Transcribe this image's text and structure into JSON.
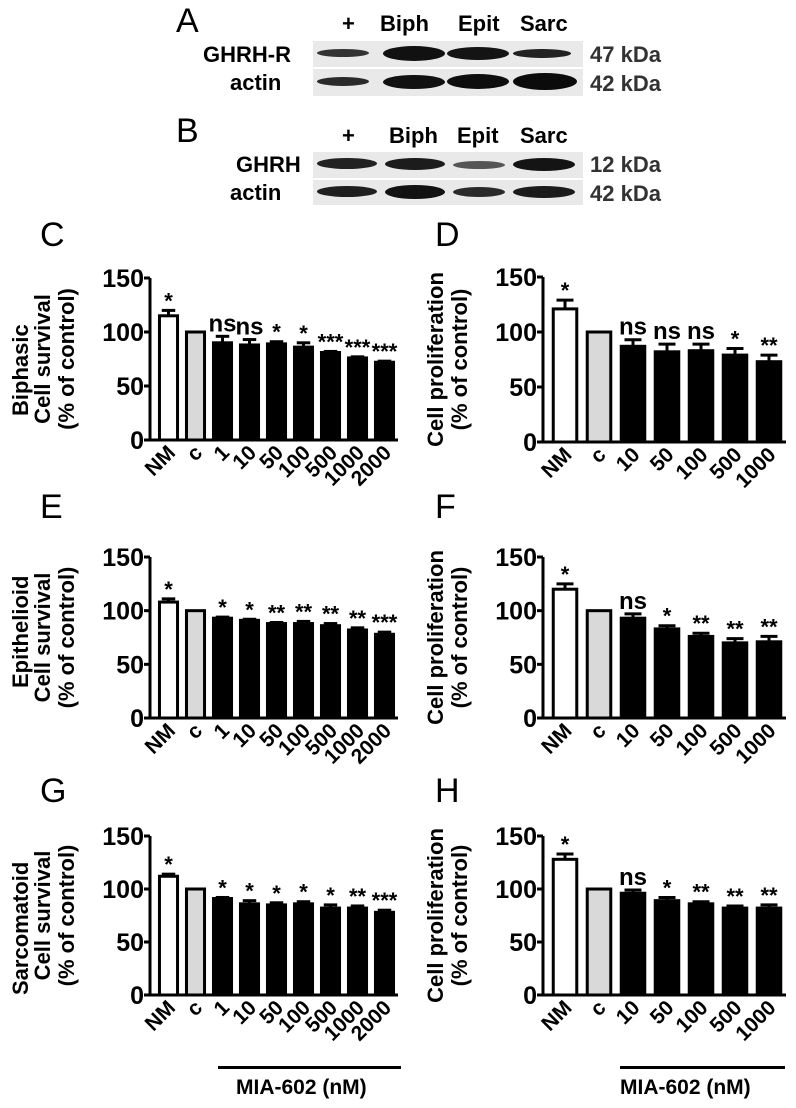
{
  "figure": {
    "panel_A": {
      "letter": "A",
      "lanes": [
        "+",
        "Biph",
        "Epit",
        "Sarc"
      ],
      "rows": [
        {
          "label": "GHRH-R",
          "kda": "47 kDa",
          "intensities": [
            0.55,
            0.95,
            0.9,
            0.7
          ]
        },
        {
          "label": "actin",
          "kda": "42 kDa",
          "intensities": [
            0.6,
            0.9,
            0.92,
            0.95
          ]
        }
      ]
    },
    "panel_B": {
      "letter": "B",
      "lanes": [
        "+",
        "Biph",
        "Epit",
        "Sarc"
      ],
      "rows": [
        {
          "label": "GHRH",
          "kda": "12 kDa",
          "intensities": [
            0.7,
            0.75,
            0.45,
            0.85
          ]
        },
        {
          "label": "actin",
          "kda": "42 kDa",
          "intensities": [
            0.75,
            0.85,
            0.65,
            0.75
          ]
        }
      ]
    },
    "row_labels": [
      "Biphasic",
      "Epithelioid",
      "Sarcomatoid"
    ],
    "x_group_label": "MIA-602 (nM)"
  },
  "chart_data": [
    {
      "panel": "C",
      "type": "bar",
      "row": "Biphasic",
      "ylabel": "Cell survival\n(% of control)",
      "ylabel_line1": "Cell survival",
      "ylabel_line2": "(% of control)",
      "ylim": [
        0,
        150
      ],
      "yticks": [
        0,
        50,
        100,
        150
      ],
      "categories": [
        "NM",
        "c",
        "1",
        "10",
        "50",
        "100",
        "500",
        "1000",
        "2000"
      ],
      "values": [
        115,
        100,
        90,
        88,
        89,
        86,
        81,
        76,
        72
      ],
      "errors": [
        5,
        0,
        6,
        5,
        2,
        4,
        1,
        1,
        1
      ],
      "significance": [
        "*",
        "",
        "ns",
        "ns",
        "*",
        "*",
        "***",
        "***",
        "***"
      ],
      "fills": [
        "white",
        "gray",
        "black",
        "black",
        "black",
        "black",
        "black",
        "black",
        "black"
      ]
    },
    {
      "panel": "D",
      "type": "bar",
      "row": "Biphasic",
      "ylabel_line1": "Cell proliferation",
      "ylabel_line2": "(% of control)",
      "ylim": [
        0,
        150
      ],
      "yticks": [
        0,
        50,
        100,
        150
      ],
      "categories": [
        "NM",
        "c",
        "10",
        "50",
        "100",
        "500",
        "1000"
      ],
      "values": [
        121,
        100,
        87,
        82,
        83,
        79,
        73
      ],
      "errors": [
        8,
        0,
        6,
        7,
        6,
        6,
        6
      ],
      "significance": [
        "*",
        "",
        "ns",
        "ns",
        "ns",
        "*",
        "**"
      ],
      "fills": [
        "white",
        "gray",
        "black",
        "black",
        "black",
        "black",
        "black"
      ]
    },
    {
      "panel": "E",
      "type": "bar",
      "row": "Epithelioid",
      "ylabel_line1": "Cell survival",
      "ylabel_line2": "(% of control)",
      "ylim": [
        0,
        150
      ],
      "yticks": [
        0,
        50,
        100,
        150
      ],
      "categories": [
        "NM",
        "c",
        "1",
        "10",
        "50",
        "100",
        "500",
        "1000",
        "2000"
      ],
      "values": [
        108,
        100,
        93,
        91,
        88,
        88,
        86,
        82,
        78
      ],
      "errors": [
        3,
        0,
        1,
        1,
        1,
        2,
        2,
        2,
        2
      ],
      "significance": [
        "*",
        "",
        "*",
        "*",
        "**",
        "**",
        "**",
        "**",
        "***"
      ],
      "fills": [
        "white",
        "gray",
        "black",
        "black",
        "black",
        "black",
        "black",
        "black",
        "black"
      ]
    },
    {
      "panel": "F",
      "type": "bar",
      "row": "Epithelioid",
      "ylabel_line1": "Cell proliferation",
      "ylabel_line2": "(% of control)",
      "ylim": [
        0,
        150
      ],
      "yticks": [
        0,
        50,
        100,
        150
      ],
      "categories": [
        "NM",
        "c",
        "10",
        "50",
        "100",
        "500",
        "1000"
      ],
      "values": [
        120,
        100,
        93,
        83,
        76,
        70,
        71
      ],
      "errors": [
        5,
        0,
        4,
        3,
        3,
        4,
        5
      ],
      "significance": [
        "*",
        "",
        "ns",
        "*",
        "**",
        "**",
        "**"
      ],
      "fills": [
        "white",
        "gray",
        "black",
        "black",
        "black",
        "black",
        "black"
      ]
    },
    {
      "panel": "G",
      "type": "bar",
      "row": "Sarcomatoid",
      "ylabel_line1": "Cell survival",
      "ylabel_line2": "(% of control)",
      "ylim": [
        0,
        150
      ],
      "yticks": [
        0,
        50,
        100,
        150
      ],
      "categories": [
        "NM",
        "c",
        "1",
        "10",
        "50",
        "100",
        "500",
        "1000",
        "2000"
      ],
      "values": [
        112,
        100,
        91,
        86,
        85,
        86,
        82,
        82,
        78
      ],
      "errors": [
        2,
        0,
        1,
        3,
        2,
        2,
        3,
        2,
        2
      ],
      "significance": [
        "*",
        "",
        "*",
        "*",
        "*",
        "*",
        "*",
        "**",
        "***"
      ],
      "fills": [
        "white",
        "gray",
        "black",
        "black",
        "black",
        "black",
        "black",
        "black",
        "black"
      ]
    },
    {
      "panel": "H",
      "type": "bar",
      "row": "Sarcomatoid",
      "ylabel_line1": "Cell proliferation",
      "ylabel_line2": "(% of control)",
      "ylim": [
        0,
        150
      ],
      "yticks": [
        0,
        50,
        100,
        150
      ],
      "categories": [
        "NM",
        "c",
        "10",
        "50",
        "100",
        "500",
        "1000"
      ],
      "values": [
        128,
        100,
        96,
        89,
        86,
        82,
        82
      ],
      "errors": [
        5,
        0,
        3,
        3,
        2,
        2,
        3
      ],
      "significance": [
        "*",
        "",
        "ns",
        "*",
        "**",
        "**",
        "**"
      ],
      "fills": [
        "white",
        "gray",
        "black",
        "black",
        "black",
        "black",
        "black"
      ]
    }
  ],
  "colors": {
    "gray_bar": "#d9d9d9",
    "black_bar": "#000000",
    "white_bar": "#ffffff"
  }
}
